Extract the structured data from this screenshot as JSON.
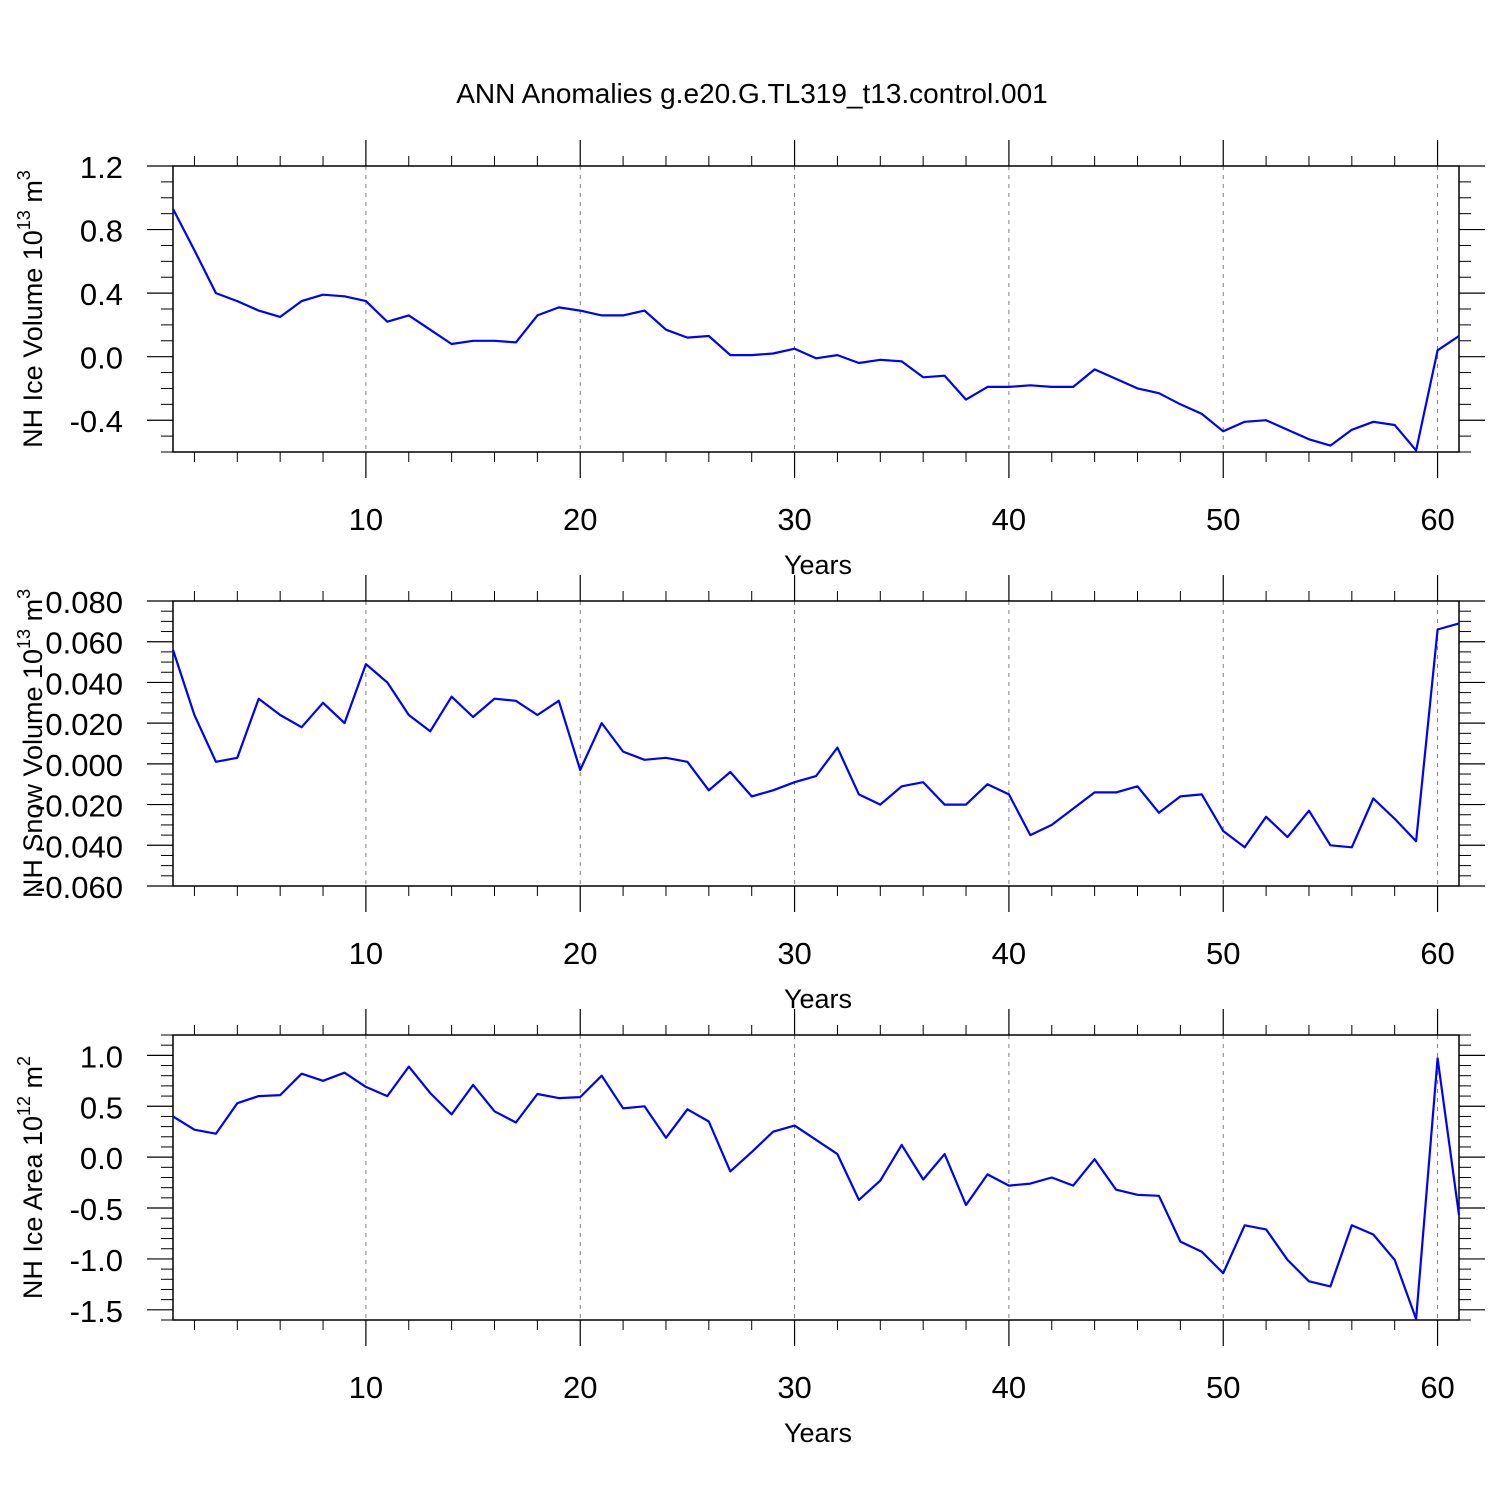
{
  "figure_title": "ANN Anomalies g.e20.G.TL319_t13.control.001",
  "colors": {
    "line": "#0000ff",
    "axis": "#000000",
    "grid": "#7f7f7f"
  },
  "chart_data": [
    {
      "type": "line",
      "ylabel": {
        "main": "NH Ice Volume 10",
        "sup": "13",
        "unit": " m",
        "unit_sup": "3"
      },
      "xlabel": "Years",
      "xlim": [
        1,
        61
      ],
      "ylim": [
        -0.6,
        1.2
      ],
      "xticks": [
        10,
        20,
        30,
        40,
        50,
        60
      ],
      "yticks": [
        -0.4,
        0.0,
        0.4,
        0.8,
        1.2
      ],
      "yticklabels": [
        "-0.4",
        "0.0",
        "0.4",
        "0.8",
        "1.2"
      ],
      "yminor": 0.1,
      "series": [
        {
          "name": "NH Ice Volume",
          "x": [
            1,
            2,
            3,
            4,
            5,
            6,
            7,
            8,
            9,
            10,
            11,
            12,
            13,
            14,
            15,
            16,
            17,
            18,
            19,
            20,
            21,
            22,
            23,
            24,
            25,
            26,
            27,
            28,
            29,
            30,
            31,
            32,
            33,
            34,
            35,
            36,
            37,
            38,
            39,
            40,
            41,
            42,
            43,
            44,
            45,
            46,
            47,
            48,
            49,
            50,
            51,
            52,
            53,
            54,
            55,
            56,
            57,
            58,
            59,
            60,
            61
          ],
          "values": [
            0.93,
            0.67,
            0.4,
            0.35,
            0.29,
            0.25,
            0.35,
            0.39,
            0.38,
            0.35,
            0.22,
            0.26,
            0.17,
            0.08,
            0.1,
            0.1,
            0.09,
            0.26,
            0.31,
            0.29,
            0.26,
            0.26,
            0.29,
            0.17,
            0.12,
            0.13,
            0.01,
            0.01,
            0.02,
            0.05,
            -0.01,
            0.01,
            -0.04,
            -0.02,
            -0.03,
            -0.13,
            -0.12,
            -0.27,
            -0.19,
            -0.19,
            -0.18,
            -0.19,
            -0.19,
            -0.08,
            -0.14,
            -0.2,
            -0.23,
            -0.3,
            -0.36,
            -0.47,
            -0.41,
            -0.4,
            -0.46,
            -0.52,
            -0.56,
            -0.46,
            -0.41,
            -0.43,
            -0.59,
            0.04,
            0.13
          ]
        }
      ]
    },
    {
      "type": "line",
      "ylabel": {
        "main": "NH Snow Volume 10",
        "sup": "13",
        "unit": " m",
        "unit_sup": "3"
      },
      "xlabel": "Years",
      "xlim": [
        1,
        61
      ],
      "ylim": [
        -0.06,
        0.08
      ],
      "xticks": [
        10,
        20,
        30,
        40,
        50,
        60
      ],
      "yticks": [
        -0.06,
        -0.04,
        -0.02,
        0.0,
        0.02,
        0.04,
        0.06,
        0.08
      ],
      "yticklabels": [
        "-0.060",
        "-0.040",
        "-0.020",
        "0.000",
        "0.020",
        "0.040",
        "0.060",
        "0.080"
      ],
      "yminor": 0.005,
      "series": [
        {
          "name": "NH Snow Volume",
          "x": [
            1,
            2,
            3,
            4,
            5,
            6,
            7,
            8,
            9,
            10,
            11,
            12,
            13,
            14,
            15,
            16,
            17,
            18,
            19,
            20,
            21,
            22,
            23,
            24,
            25,
            26,
            27,
            28,
            29,
            30,
            31,
            32,
            33,
            34,
            35,
            36,
            37,
            38,
            39,
            40,
            41,
            42,
            43,
            44,
            45,
            46,
            47,
            48,
            49,
            50,
            51,
            52,
            53,
            54,
            55,
            56,
            57,
            58,
            59,
            60,
            61
          ],
          "values": [
            0.056,
            0.024,
            0.001,
            0.003,
            0.032,
            0.024,
            0.018,
            0.03,
            0.02,
            0.049,
            0.04,
            0.024,
            0.016,
            0.033,
            0.023,
            0.032,
            0.031,
            0.024,
            0.031,
            -0.003,
            0.02,
            0.006,
            0.002,
            0.003,
            0.001,
            -0.013,
            -0.004,
            -0.016,
            -0.013,
            -0.009,
            -0.006,
            0.008,
            -0.015,
            -0.02,
            -0.011,
            -0.009,
            -0.02,
            -0.02,
            -0.01,
            -0.015,
            -0.035,
            -0.03,
            -0.022,
            -0.014,
            -0.014,
            -0.011,
            -0.024,
            -0.016,
            -0.015,
            -0.033,
            -0.041,
            -0.026,
            -0.036,
            -0.023,
            -0.04,
            -0.041,
            -0.017,
            -0.027,
            -0.038,
            0.066,
            0.069
          ]
        }
      ]
    },
    {
      "type": "line",
      "ylabel": {
        "main": "NH Ice Area 10",
        "sup": "12",
        "unit": " m",
        "unit_sup": "2"
      },
      "xlabel": "Years",
      "xlim": [
        1,
        61
      ],
      "ylim": [
        -1.6,
        1.2
      ],
      "xticks": [
        10,
        20,
        30,
        40,
        50,
        60
      ],
      "yticks": [
        -1.5,
        -1.0,
        -0.5,
        0.0,
        0.5,
        1.0
      ],
      "yticklabels": [
        "-1.5",
        "-1.0",
        "-0.5",
        "0.0",
        "0.5",
        "1.0"
      ],
      "yminor": 0.1,
      "series": [
        {
          "name": "NH Ice Area",
          "x": [
            1,
            2,
            3,
            4,
            5,
            6,
            7,
            8,
            9,
            10,
            11,
            12,
            13,
            14,
            15,
            16,
            17,
            18,
            19,
            20,
            21,
            22,
            23,
            24,
            25,
            26,
            27,
            28,
            29,
            30,
            31,
            32,
            33,
            34,
            35,
            36,
            37,
            38,
            39,
            40,
            41,
            42,
            43,
            44,
            45,
            46,
            47,
            48,
            49,
            50,
            51,
            52,
            53,
            54,
            55,
            56,
            57,
            58,
            59,
            60,
            61
          ],
          "values": [
            0.4,
            0.27,
            0.23,
            0.53,
            0.6,
            0.61,
            0.82,
            0.75,
            0.83,
            0.69,
            0.6,
            0.89,
            0.63,
            0.42,
            0.71,
            0.45,
            0.34,
            0.62,
            0.58,
            0.59,
            0.8,
            0.48,
            0.5,
            0.19,
            0.47,
            0.35,
            -0.14,
            0.05,
            0.25,
            0.31,
            0.17,
            0.03,
            -0.42,
            -0.23,
            0.12,
            -0.22,
            0.03,
            -0.47,
            -0.17,
            -0.28,
            -0.26,
            -0.2,
            -0.28,
            -0.02,
            -0.32,
            -0.37,
            -0.38,
            -0.83,
            -0.93,
            -1.14,
            -0.67,
            -0.71,
            -1.01,
            -1.22,
            -1.27,
            -0.67,
            -0.76,
            -1.01,
            -1.59,
            0.97,
            -0.57
          ]
        }
      ]
    }
  ]
}
